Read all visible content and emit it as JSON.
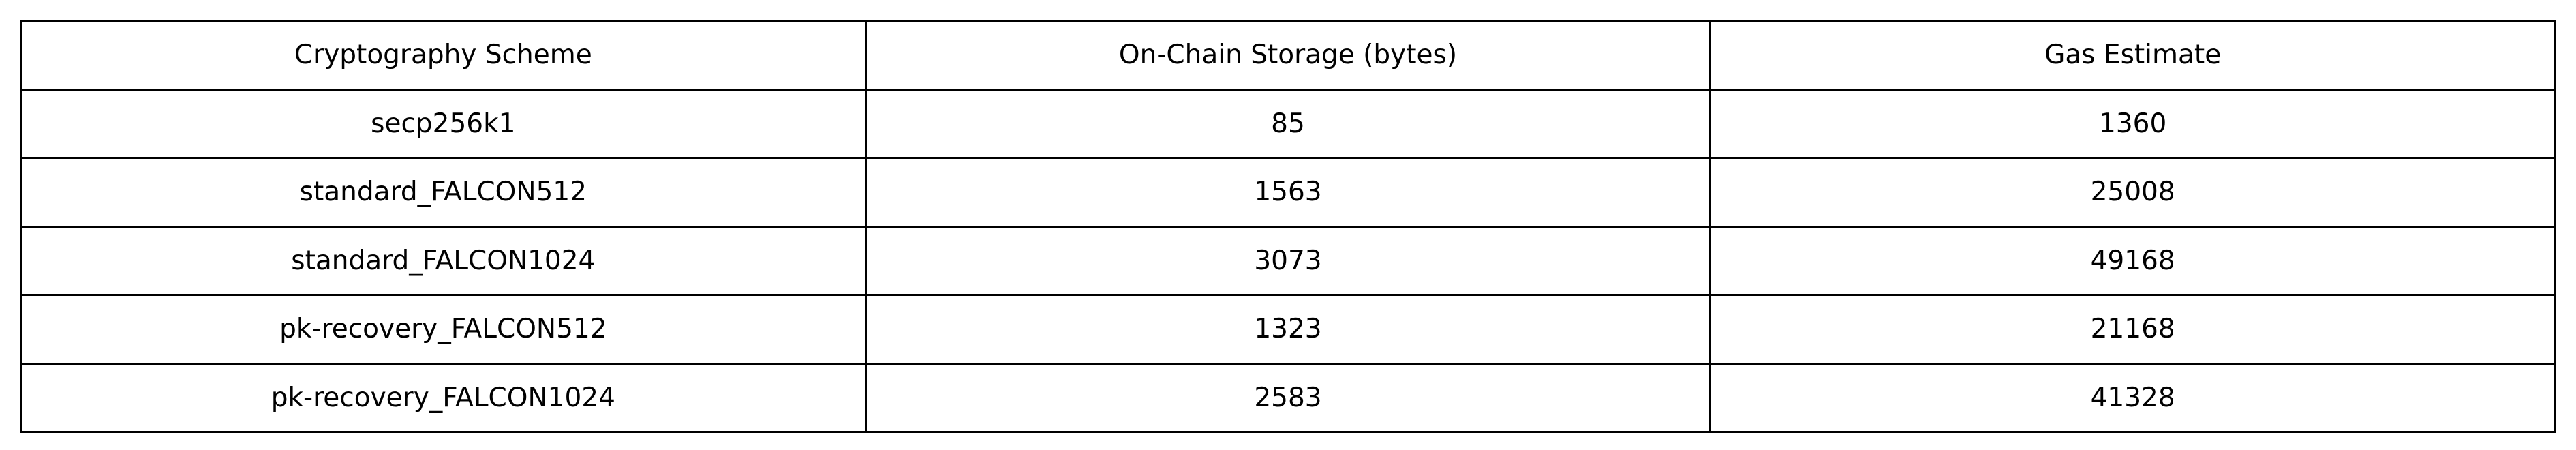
{
  "table": {
    "headers": [
      "Cryptography Scheme",
      "On-Chain Storage (bytes)",
      "Gas Estimate"
    ],
    "rows": [
      [
        "secp256k1",
        "85",
        "1360"
      ],
      [
        "standard_FALCON512",
        "1563",
        "25008"
      ],
      [
        "standard_FALCON1024",
        "3073",
        "49168"
      ],
      [
        "pk-recovery_FALCON512",
        "1323",
        "21168"
      ],
      [
        "pk-recovery_FALCON1024",
        "2583",
        "41328"
      ]
    ]
  }
}
